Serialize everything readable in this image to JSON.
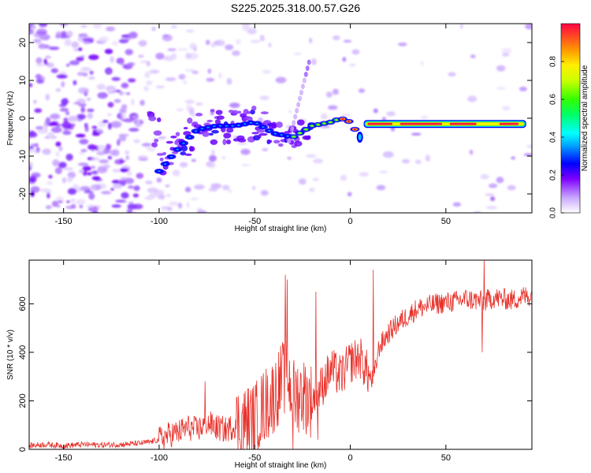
{
  "title": "S225.2025.318.00.57.G26",
  "chart_data": [
    {
      "type": "heatmap",
      "name": "spectrogram",
      "xlabel": "Height of straight line (km)",
      "ylabel": "Frequency (Hz)",
      "xlim": [
        -168,
        95
      ],
      "ylim": [
        -25,
        25
      ],
      "xticks": [
        -150,
        -100,
        -50,
        0,
        50
      ],
      "yticks": [
        -20,
        -10,
        0,
        10,
        20
      ],
      "colorbar": {
        "label": "Normalized spectral amplitude",
        "range": [
          0,
          1
        ],
        "ticks": [
          0.0,
          0.2,
          0.4,
          0.6,
          0.8
        ]
      },
      "ridge": {
        "description": "dominant frequency trace",
        "x": [
          -100,
          -90,
          -80,
          -70,
          -60,
          -50,
          -40,
          -30,
          -20,
          -10,
          -5,
          0,
          5,
          10,
          20,
          30,
          40,
          50,
          60,
          70,
          80,
          90
        ],
        "y": [
          -14,
          -8,
          -3,
          -2,
          -2,
          -1,
          -4,
          -5,
          -2,
          -1,
          0,
          -1,
          -5,
          -1.5,
          -1.5,
          -1.5,
          -1.5,
          -1.5,
          -1.5,
          -1.5,
          -2,
          -3
        ]
      }
    },
    {
      "type": "line",
      "name": "snr",
      "xlabel": "Height of straight line (km)",
      "ylabel": "SNR (10 * v/v)",
      "xlim": [
        -168,
        95
      ],
      "ylim": [
        0,
        780
      ],
      "xticks": [
        -150,
        -100,
        -50,
        0,
        50
      ],
      "yticks": [
        0,
        200,
        400,
        600
      ],
      "color": "#e8312a",
      "x": [
        -168,
        -160,
        -150,
        -140,
        -130,
        -120,
        -110,
        -105,
        -100,
        -95,
        -90,
        -85,
        -80,
        -75,
        -70,
        -65,
        -60,
        -55,
        -50,
        -45,
        -40,
        -35,
        -32,
        -30,
        -25,
        -20,
        -15,
        -10,
        -5,
        0,
        5,
        10,
        12,
        15,
        20,
        25,
        30,
        35,
        40,
        45,
        50,
        55,
        60,
        65,
        70,
        75,
        80,
        85,
        90,
        95
      ],
      "y": [
        15,
        20,
        15,
        20,
        18,
        20,
        25,
        30,
        40,
        60,
        70,
        90,
        80,
        110,
        90,
        80,
        100,
        110,
        120,
        180,
        220,
        300,
        280,
        220,
        230,
        200,
        260,
        330,
        300,
        360,
        380,
        300,
        280,
        420,
        480,
        520,
        550,
        580,
        590,
        600,
        605,
        610,
        620,
        615,
        610,
        625,
        620,
        615,
        630,
        635
      ]
    }
  ]
}
